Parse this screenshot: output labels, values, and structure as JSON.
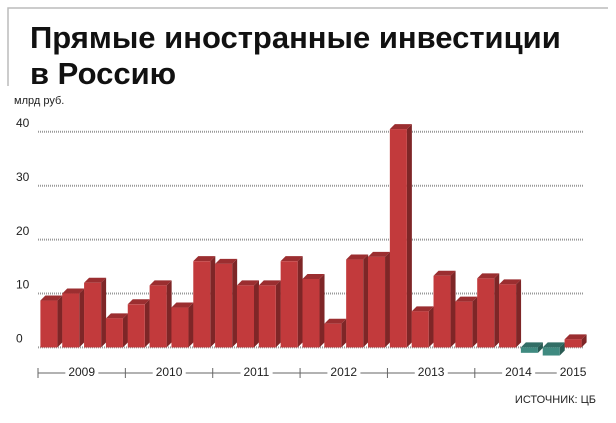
{
  "chart_data": {
    "type": "bar",
    "title_lines": [
      "Прямые иностранные инвестиции",
      "в Россию"
    ],
    "y_label": "млрд руб.",
    "source": "ИСТОЧНИК: ЦБ",
    "categories": [
      null,
      null,
      null,
      null,
      null,
      null,
      null,
      null,
      null,
      null,
      null,
      null,
      null,
      null,
      null,
      null,
      null,
      null,
      null,
      null,
      null,
      null,
      null,
      null,
      null
    ],
    "year_labels": [
      "2009",
      "2010",
      "2011",
      "2012",
      "2013",
      "2014",
      "2015"
    ],
    "values": [
      8.7,
      10,
      12,
      5.4,
      8,
      11.5,
      7.4,
      16,
      15.5,
      11.5,
      11.5,
      16,
      12.7,
      4.4,
      16.3,
      16.8,
      40.5,
      6.7,
      13.3,
      8.5,
      12.8,
      11.7,
      -1,
      -1.5,
      1.5
    ],
    "color": "#c23a3c",
    "negative_color": "#3f8a80",
    "ylim": [
      -4,
      42
    ],
    "yticks": [
      0,
      10,
      20,
      30,
      40
    ],
    "grid": true
  }
}
